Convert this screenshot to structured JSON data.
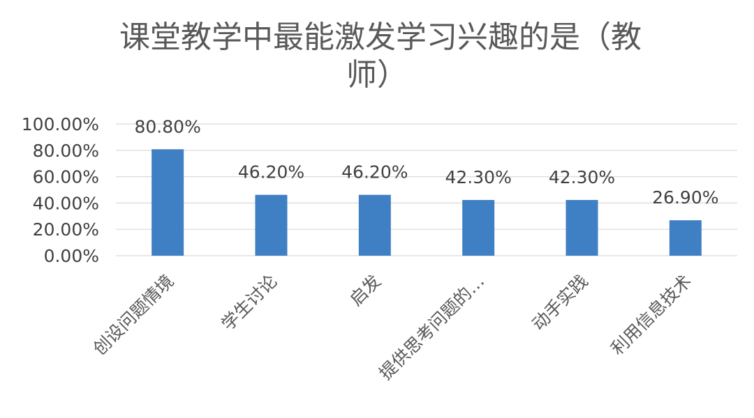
{
  "chart_data": {
    "type": "bar",
    "title": "课堂教学中最能激发学习兴趣的是（教师）",
    "title_lines": [
      "课堂教学中最能激发学习兴趣的是（教",
      "师）"
    ],
    "categories": [
      "创设问题情境",
      "学生讨论",
      "启发",
      "提供思考问题的…",
      "动手实践",
      "利用信息技术"
    ],
    "values": [
      80.8,
      46.2,
      46.2,
      42.3,
      42.3,
      26.9
    ],
    "data_labels": [
      "80.80%",
      "46.20%",
      "46.20%",
      "42.30%",
      "42.30%",
      "26.90%"
    ],
    "y_ticks": [
      0,
      20,
      40,
      60,
      80,
      100
    ],
    "y_tick_labels": [
      "0.00%",
      "20.00%",
      "40.00%",
      "60.00%",
      "80.00%",
      "100.00%"
    ],
    "ylim": [
      0,
      100
    ],
    "xlabel": "",
    "ylabel": "",
    "grid": true,
    "legend": "none",
    "bar_color": "#3f7fc4"
  }
}
